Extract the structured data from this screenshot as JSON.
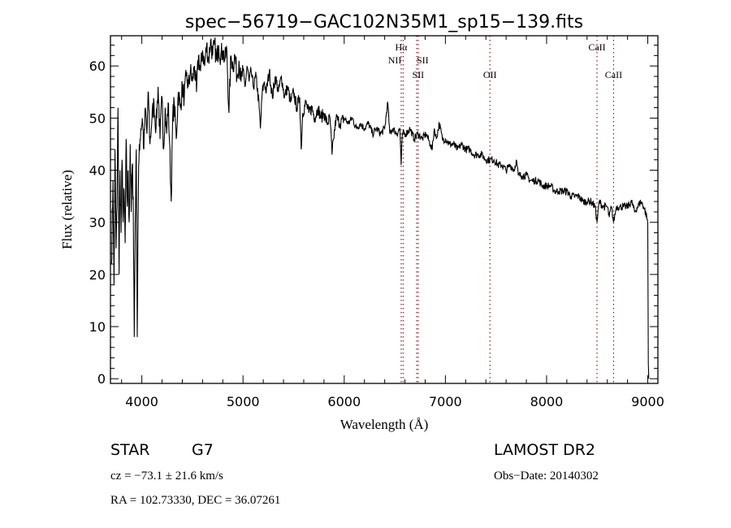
{
  "chart_data": {
    "type": "line",
    "title": "spec−56719−GAC102N35M1_sp15−139.fits",
    "xlabel": "Wavelength (Å)",
    "ylabel": "Flux (relative)",
    "xlim": [
      3690,
      9100
    ],
    "ylim": [
      -0.9,
      65.8
    ],
    "xticks": [
      4000,
      5000,
      6000,
      7000,
      8000,
      9000
    ],
    "yticks": [
      0,
      10,
      20,
      30,
      40,
      50,
      60
    ],
    "grid": false,
    "series": [
      {
        "name": "flux",
        "points": [
          [
            3700,
            22
          ],
          [
            3715,
            38
          ],
          [
            3725,
            18
          ],
          [
            3735,
            44
          ],
          [
            3745,
            25
          ],
          [
            3755,
            33
          ],
          [
            3765,
            52
          ],
          [
            3775,
            20
          ],
          [
            3785,
            40
          ],
          [
            3795,
            28
          ],
          [
            3805,
            42
          ],
          [
            3815,
            30
          ],
          [
            3825,
            36
          ],
          [
            3835,
            26
          ],
          [
            3845,
            46
          ],
          [
            3855,
            33
          ],
          [
            3865,
            40
          ],
          [
            3875,
            30
          ],
          [
            3885,
            45
          ],
          [
            3895,
            32
          ],
          [
            3905,
            41
          ],
          [
            3915,
            35
          ],
          [
            3925,
            8
          ],
          [
            3935,
            30
          ],
          [
            3945,
            44
          ],
          [
            3955,
            8
          ],
          [
            3965,
            35
          ],
          [
            3975,
            45
          ],
          [
            3990,
            48
          ],
          [
            4005,
            50
          ],
          [
            4020,
            44
          ],
          [
            4035,
            52
          ],
          [
            4050,
            47
          ],
          [
            4065,
            55
          ],
          [
            4080,
            45
          ],
          [
            4100,
            50
          ],
          [
            4120,
            53
          ],
          [
            4140,
            48
          ],
          [
            4160,
            56
          ],
          [
            4180,
            46
          ],
          [
            4200,
            54
          ],
          [
            4215,
            44
          ],
          [
            4230,
            52
          ],
          [
            4245,
            47
          ],
          [
            4260,
            53
          ],
          [
            4275,
            45
          ],
          [
            4290,
            34
          ],
          [
            4305,
            50
          ],
          [
            4320,
            53
          ],
          [
            4340,
            46
          ],
          [
            4360,
            55
          ],
          [
            4380,
            52
          ],
          [
            4400,
            56
          ],
          [
            4420,
            54
          ],
          [
            4440,
            58
          ],
          [
            4460,
            56
          ],
          [
            4480,
            59
          ],
          [
            4500,
            57
          ],
          [
            4520,
            60
          ],
          [
            4540,
            55
          ],
          [
            4560,
            62
          ],
          [
            4580,
            59
          ],
          [
            4600,
            63
          ],
          [
            4620,
            60
          ],
          [
            4640,
            64
          ],
          [
            4660,
            61
          ],
          [
            4680,
            65
          ],
          [
            4700,
            62
          ],
          [
            4720,
            64
          ],
          [
            4740,
            61
          ],
          [
            4760,
            64
          ],
          [
            4780,
            62
          ],
          [
            4800,
            63
          ],
          [
            4820,
            61
          ],
          [
            4840,
            63
          ],
          [
            4861,
            51
          ],
          [
            4880,
            62
          ],
          [
            4900,
            60
          ],
          [
            4920,
            62
          ],
          [
            4940,
            58
          ],
          [
            4960,
            61
          ],
          [
            4980,
            57
          ],
          [
            5000,
            59
          ],
          [
            5020,
            56
          ],
          [
            5040,
            60
          ],
          [
            5060,
            57
          ],
          [
            5080,
            59
          ],
          [
            5100,
            56
          ],
          [
            5130,
            58
          ],
          [
            5160,
            52
          ],
          [
            5172,
            48
          ],
          [
            5190,
            55
          ],
          [
            5210,
            57
          ],
          [
            5230,
            55
          ],
          [
            5260,
            59
          ],
          [
            5290,
            54
          ],
          [
            5320,
            58
          ],
          [
            5350,
            55
          ],
          [
            5380,
            58
          ],
          [
            5410,
            54
          ],
          [
            5440,
            56
          ],
          [
            5470,
            53
          ],
          [
            5500,
            55
          ],
          [
            5530,
            52
          ],
          [
            5560,
            54
          ],
          [
            5575,
            44
          ],
          [
            5590,
            51
          ],
          [
            5620,
            53
          ],
          [
            5650,
            51
          ],
          [
            5680,
            52
          ],
          [
            5710,
            50
          ],
          [
            5740,
            52
          ],
          [
            5770,
            50
          ],
          [
            5800,
            51
          ],
          [
            5830,
            49
          ],
          [
            5860,
            50
          ],
          [
            5880,
            43
          ],
          [
            5895,
            46
          ],
          [
            5920,
            50
          ],
          [
            5960,
            49
          ],
          [
            6000,
            50
          ],
          [
            6040,
            49
          ],
          [
            6080,
            50
          ],
          [
            6120,
            48
          ],
          [
            6160,
            49
          ],
          [
            6200,
            48
          ],
          [
            6240,
            49
          ],
          [
            6280,
            47
          ],
          [
            6320,
            48
          ],
          [
            6360,
            47
          ],
          [
            6400,
            48
          ],
          [
            6430,
            53
          ],
          [
            6450,
            47
          ],
          [
            6480,
            48
          ],
          [
            6520,
            47
          ],
          [
            6550,
            48
          ],
          [
            6563,
            41
          ],
          [
            6575,
            47
          ],
          [
            6610,
            47
          ],
          [
            6650,
            48
          ],
          [
            6690,
            46
          ],
          [
            6730,
            47
          ],
          [
            6770,
            46
          ],
          [
            6810,
            47
          ],
          [
            6850,
            45
          ],
          [
            6870,
            44
          ],
          [
            6890,
            48
          ],
          [
            6910,
            46
          ],
          [
            6940,
            49
          ],
          [
            6970,
            46
          ],
          [
            7000,
            46
          ],
          [
            7040,
            45
          ],
          [
            7080,
            45
          ],
          [
            7120,
            44
          ],
          [
            7160,
            45
          ],
          [
            7200,
            44
          ],
          [
            7240,
            44
          ],
          [
            7280,
            43
          ],
          [
            7320,
            43
          ],
          [
            7360,
            43
          ],
          [
            7400,
            42
          ],
          [
            7440,
            42
          ],
          [
            7480,
            42
          ],
          [
            7520,
            41
          ],
          [
            7560,
            41
          ],
          [
            7600,
            40
          ],
          [
            7640,
            41
          ],
          [
            7680,
            40
          ],
          [
            7700,
            42
          ],
          [
            7720,
            39
          ],
          [
            7760,
            39
          ],
          [
            7800,
            39
          ],
          [
            7840,
            38
          ],
          [
            7880,
            38
          ],
          [
            7920,
            38
          ],
          [
            7960,
            37
          ],
          [
            8000,
            37
          ],
          [
            8040,
            37
          ],
          [
            8080,
            36
          ],
          [
            8120,
            36
          ],
          [
            8160,
            36
          ],
          [
            8200,
            36
          ],
          [
            8240,
            35
          ],
          [
            8280,
            35
          ],
          [
            8320,
            35
          ],
          [
            8360,
            34
          ],
          [
            8400,
            34
          ],
          [
            8440,
            34
          ],
          [
            8480,
            33
          ],
          [
            8498,
            30
          ],
          [
            8520,
            34
          ],
          [
            8560,
            33
          ],
          [
            8600,
            33
          ],
          [
            8620,
            31
          ],
          [
            8640,
            33
          ],
          [
            8662,
            30
          ],
          [
            8690,
            33
          ],
          [
            8720,
            33
          ],
          [
            8760,
            33
          ],
          [
            8800,
            33
          ],
          [
            8840,
            34
          ],
          [
            8870,
            32
          ],
          [
            8900,
            33
          ],
          [
            8930,
            34
          ],
          [
            8960,
            33
          ],
          [
            8990,
            31
          ],
          [
            9000,
            30
          ],
          [
            9005,
            3
          ],
          [
            9010,
            0
          ]
        ]
      }
    ],
    "line_markers": [
      {
        "label": "Hα",
        "wavelength": 6563,
        "row": 1
      },
      {
        "label": "NII",
        "wavelength": 6583,
        "row": 2
      },
      {
        "label": "SII",
        "wavelength": 6716,
        "row": 2
      },
      {
        "label": "SII",
        "wavelength": 6731,
        "row": 3
      },
      {
        "label": "OII",
        "wavelength": 7440,
        "row": 3
      },
      {
        "label": "CaII",
        "wavelength": 8498,
        "row": 1
      },
      {
        "label": "CaII",
        "wavelength": 8662,
        "row": 3
      }
    ],
    "marker_color": "#8b1a1a"
  },
  "info": {
    "class": "STAR",
    "subclass": "G7",
    "survey": "LAMOST DR2",
    "cz": "cz = −73.1 ± 21.6 km/s",
    "obs_date": "Obs−Date: 20140302",
    "coords": "RA = 102.73330, DEC =  36.07261"
  }
}
